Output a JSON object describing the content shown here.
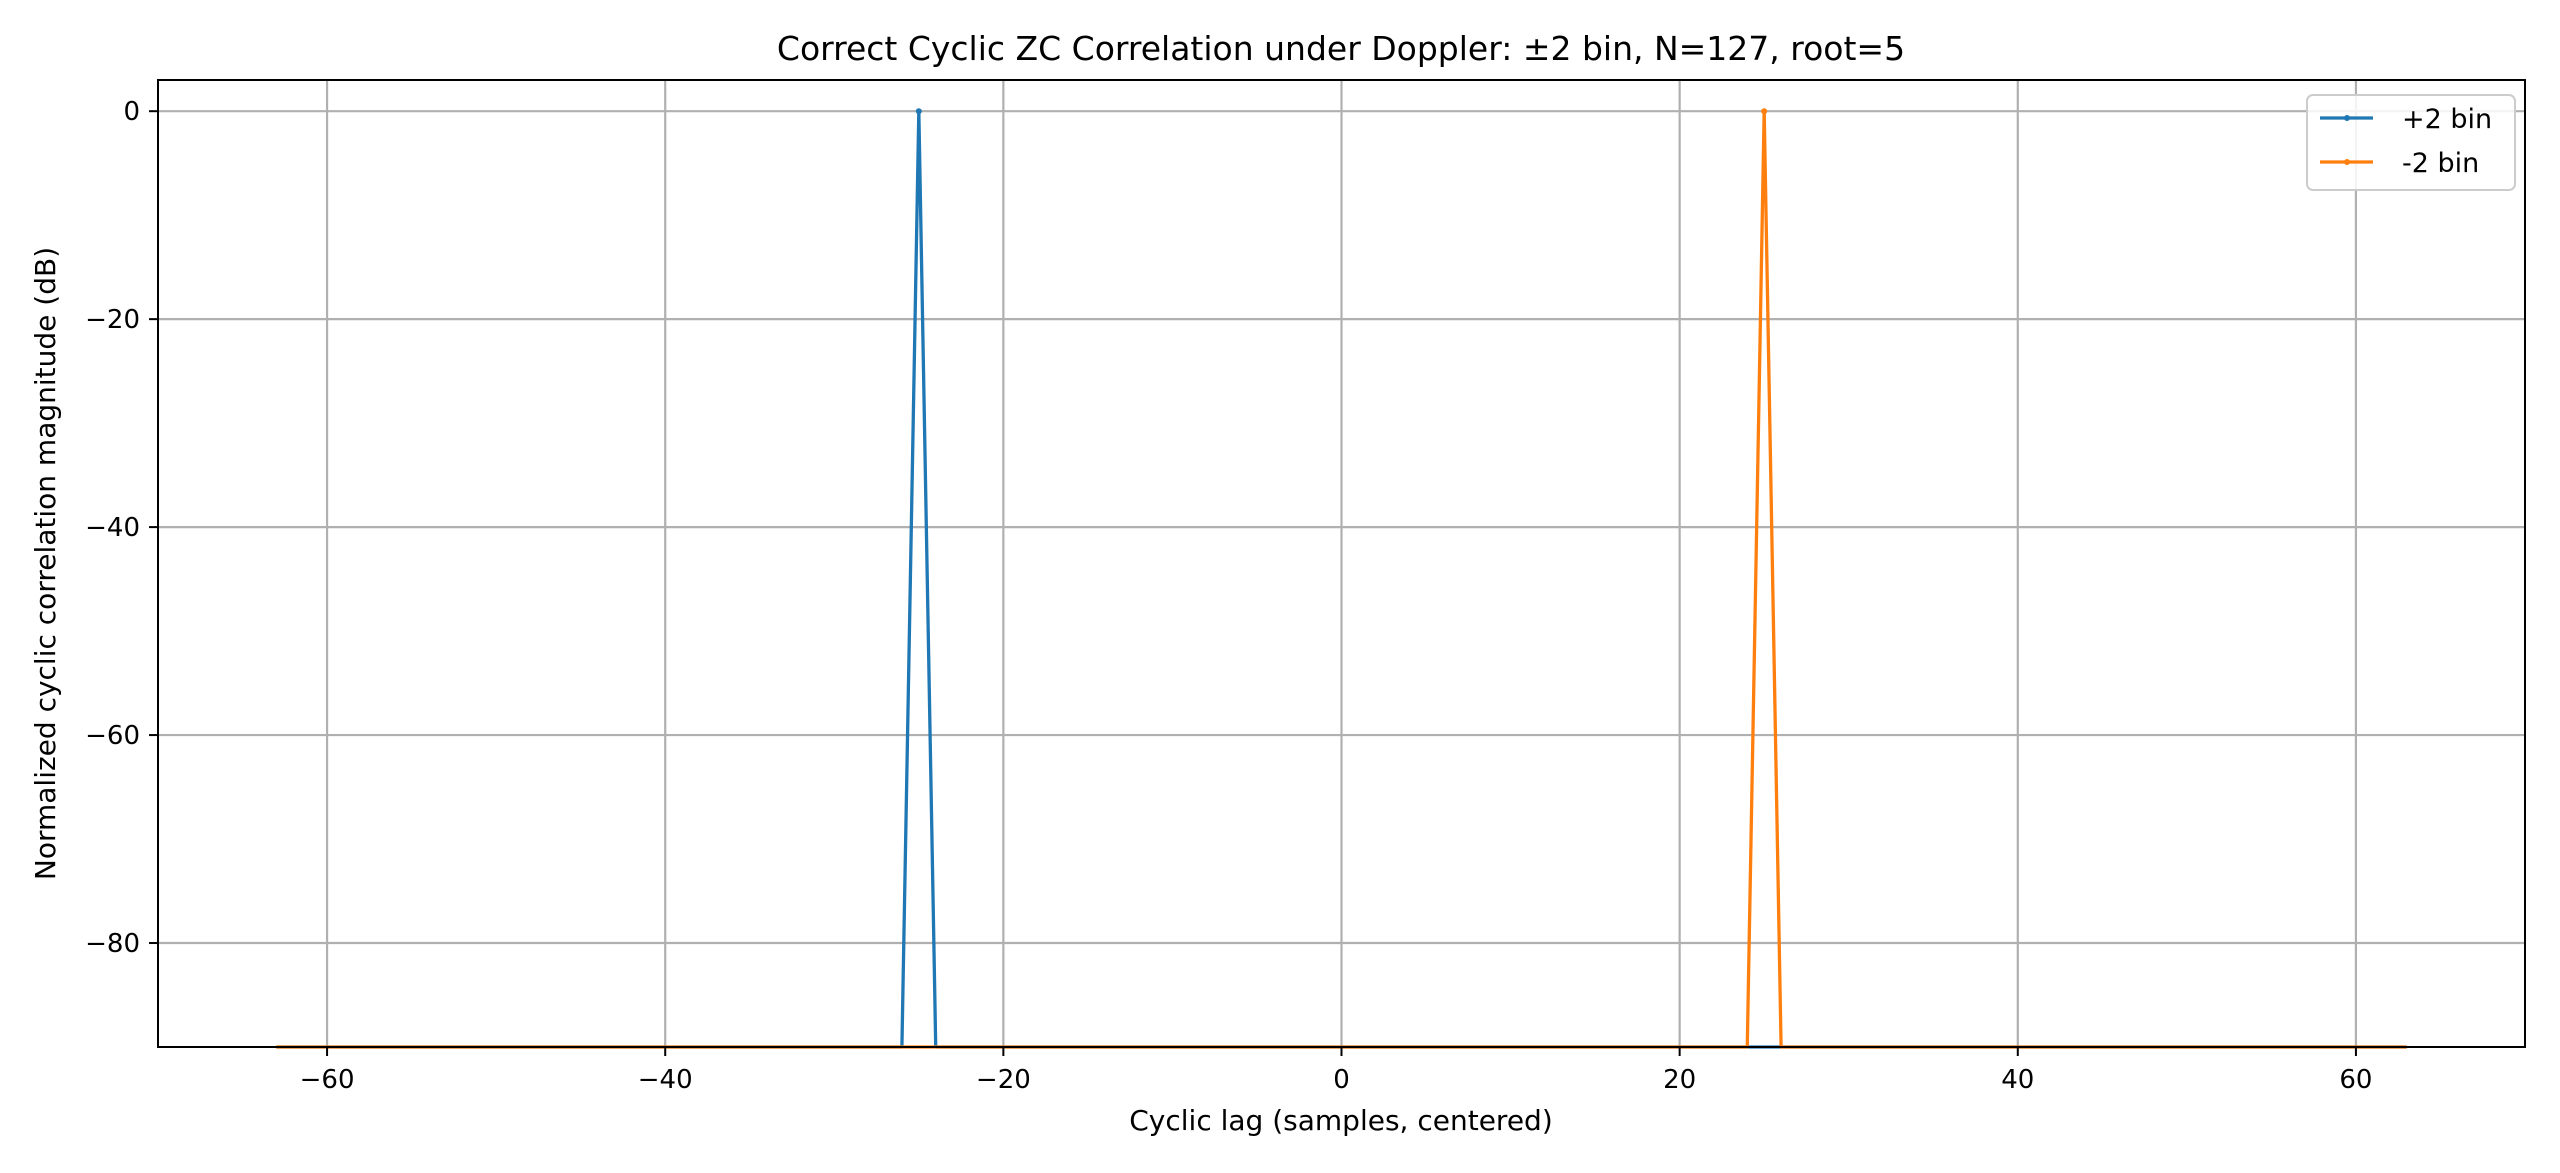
{
  "chart_data": {
    "type": "line",
    "title": "Correct Cyclic ZC Correlation under Doppler: ±2 bin, N=127, root=5",
    "xlabel": "Cyclic lag (samples, centered)",
    "ylabel": "Normalized cyclic correlation magnitude (dB)",
    "xlim": [
      -70,
      70
    ],
    "ylim": [
      -90,
      3
    ],
    "xticks": [
      -60,
      -40,
      -20,
      0,
      20,
      40,
      60
    ],
    "xtick_labels": [
      "−60",
      "−40",
      "−20",
      "0",
      "20",
      "40",
      "60"
    ],
    "yticks": [
      0,
      -20,
      -40,
      -60,
      -80
    ],
    "ytick_labels": [
      "0",
      "−20",
      "−40",
      "−60",
      "−80"
    ],
    "grid": true,
    "legend_position": "top-right",
    "x_range": [
      -63,
      63
    ],
    "floor": -90,
    "series": [
      {
        "name": "+2 bin",
        "color": "#1f77b4",
        "peak_x": -25,
        "peak_y": 0
      },
      {
        "name": "-2 bin",
        "color": "#ff7f0e",
        "peak_x": 25,
        "peak_y": 0
      }
    ]
  }
}
